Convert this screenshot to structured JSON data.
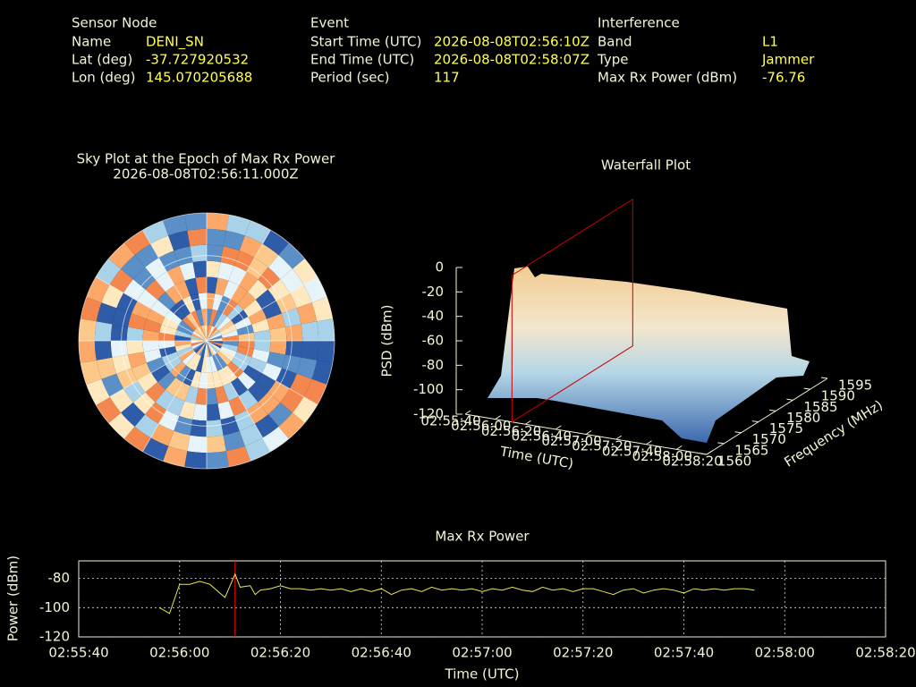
{
  "header": {
    "columns": [
      {
        "title": "Sensor Node",
        "rows": [
          {
            "label": "Name",
            "value": "DENI_SN"
          },
          {
            "label": "Lat (deg)",
            "value": "-37.727920532"
          },
          {
            "label": "Lon (deg)",
            "value": "145.070205688"
          }
        ]
      },
      {
        "title": "Event",
        "rows": [
          {
            "label": "Start Time (UTC)",
            "value": "2026-08-08T02:56:10Z"
          },
          {
            "label": "End Time (UTC)",
            "value": "2026-08-08T02:58:07Z"
          },
          {
            "label": "Period (sec)",
            "value": "117"
          }
        ]
      },
      {
        "title": "Interference",
        "rows": [
          {
            "label": "Band",
            "value": "L1"
          },
          {
            "label": "Type",
            "value": "Jammer"
          },
          {
            "label": "Max Rx Power (dBm)",
            "value": "-76.76"
          }
        ]
      }
    ]
  },
  "chart_data": [
    {
      "type": "polar-heatmap",
      "title": "Sky Plot at the Epoch of Max Rx Power",
      "subtitle": "2026-08-08T02:56:11.000Z"
    },
    {
      "type": "surface3d",
      "title": "Waterfall Plot",
      "xlabel": "Time (UTC)",
      "ylabel": "Frequency (MHz)",
      "zlabel": "PSD (dBm)",
      "xlim": [
        "02:55:40",
        "02:58:20"
      ],
      "xticks": [
        "02:55:40",
        "02:56:00",
        "02:56:20",
        "02:56:40",
        "02:57:00",
        "02:57:20",
        "02:57:40",
        "02:58:00",
        "02:58:20"
      ],
      "ylim": [
        1560,
        1595
      ],
      "yticks": [
        1560,
        1565,
        1570,
        1575,
        1580,
        1585,
        1590,
        1595
      ],
      "zlim": [
        -120,
        0
      ],
      "zticks": [
        0,
        -20,
        -40,
        -60,
        -80,
        -100,
        -120
      ],
      "marker_x": "02:56:11",
      "marker_color": "#cc0000"
    },
    {
      "type": "line",
      "title": "Max Rx Power",
      "xlabel": "Time (UTC)",
      "ylabel": "Power (dBm)",
      "x": [
        "02:55:56",
        "02:55:58",
        "02:56:00",
        "02:56:02",
        "02:56:04",
        "02:56:06",
        "02:56:08",
        "02:56:09",
        "02:56:11",
        "02:56:12",
        "02:56:14",
        "02:56:15",
        "02:56:16",
        "02:56:18",
        "02:56:20",
        "02:56:22",
        "02:56:24",
        "02:56:26",
        "02:56:28",
        "02:56:30",
        "02:56:32",
        "02:56:34",
        "02:56:36",
        "02:56:38",
        "02:56:40",
        "02:56:42",
        "02:56:44",
        "02:56:46",
        "02:56:48",
        "02:56:50",
        "02:56:52",
        "02:56:54",
        "02:56:56",
        "02:56:58",
        "02:57:00",
        "02:57:02",
        "02:57:04",
        "02:57:06",
        "02:57:08",
        "02:57:10",
        "02:57:12",
        "02:57:14",
        "02:57:16",
        "02:57:18",
        "02:57:20",
        "02:57:22",
        "02:57:24",
        "02:57:26",
        "02:57:28",
        "02:57:30",
        "02:57:32",
        "02:57:34",
        "02:57:36",
        "02:57:38",
        "02:57:40",
        "02:57:42",
        "02:57:44",
        "02:57:46",
        "02:57:48",
        "02:57:50",
        "02:57:52",
        "02:57:54"
      ],
      "values": [
        -100,
        -104,
        -84,
        -84,
        -82,
        -84,
        -90,
        -93,
        -77,
        -86,
        -85,
        -91,
        -88,
        -87,
        -85,
        -87,
        -87,
        -88,
        -87,
        -88,
        -87,
        -89,
        -87,
        -89,
        -87,
        -91,
        -88,
        -87,
        -89,
        -86,
        -88,
        -87,
        -88,
        -87,
        -89,
        -87,
        -88,
        -86,
        -88,
        -89,
        -86,
        -88,
        -87,
        -89,
        -87,
        -87,
        -89,
        -91,
        -88,
        -87,
        -90,
        -88,
        -87,
        -88,
        -90,
        -87,
        -88,
        -87,
        -88,
        -87,
        -87,
        -88
      ],
      "color": "#e8e850",
      "xlim": [
        "02:55:40",
        "02:58:20"
      ],
      "xticks": [
        "02:55:40",
        "02:56:00",
        "02:56:20",
        "02:56:40",
        "02:57:00",
        "02:57:20",
        "02:57:40",
        "02:58:00",
        "02:58:20"
      ],
      "ylim": [
        -120,
        -68
      ],
      "yticks": [
        -80,
        -100,
        -120
      ],
      "grid": true,
      "marker_x": "02:56:11",
      "marker_color": "#ff0000"
    }
  ]
}
